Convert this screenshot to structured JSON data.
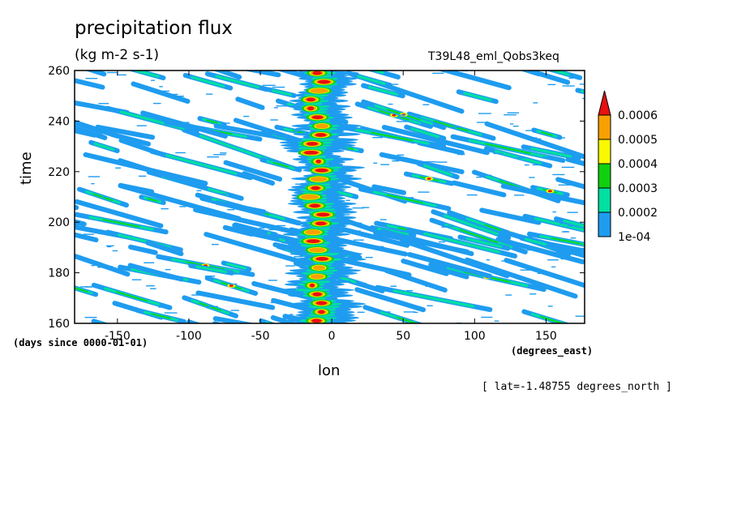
{
  "chart_data": {
    "type": "heatmap",
    "title": "precipitation flux",
    "units_label": "(kg m-2 s-1)",
    "subtitle": "T39L48_eml_Qobs3keq",
    "xlabel": "lon",
    "ylabel": "time",
    "x_units": "(degrees_east)",
    "y_units": "(days since 0000-01-01)",
    "footnote": "[ lat=-1.48755 degrees_north ]",
    "xlim": [
      -180,
      177
    ],
    "ylim": [
      160,
      260
    ],
    "xticks": [
      "-150",
      "-100",
      "-50",
      "0",
      "50",
      "100",
      "150"
    ],
    "xtick_values": [
      -150,
      -100,
      -50,
      0,
      50,
      100,
      150
    ],
    "yticks": [
      "160",
      "180",
      "200",
      "220",
      "240",
      "260"
    ],
    "ytick_values": [
      160,
      180,
      200,
      220,
      240,
      260
    ],
    "colorbar": {
      "labels": [
        "1e-04",
        "0.0002",
        "0.0003",
        "0.0004",
        "0.0005",
        "0.0006"
      ],
      "levels": [
        0.0001,
        0.0002,
        0.0003,
        0.0004,
        0.0005,
        0.0006
      ],
      "colors": [
        "#1e9cf0",
        "#00e0a0",
        "#10d010",
        "#f8f800",
        "#f8a000",
        "#e81010"
      ],
      "extend": "max"
    },
    "features": [
      {
        "kind": "stationary band",
        "lon": -10,
        "time_range": [
          160,
          260
        ],
        "peak_level": 0.0006
      },
      {
        "kind": "westward-propagating streaks",
        "direction": "westward",
        "peak_level": 0.0005
      }
    ]
  }
}
